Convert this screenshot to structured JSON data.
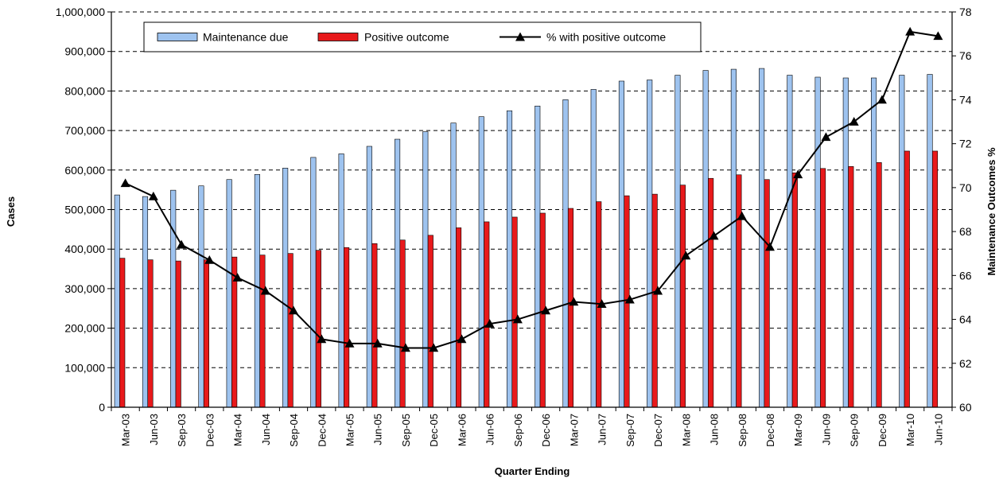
{
  "chart_data": {
    "type": "bar",
    "title": "",
    "xlabel": "Quarter Ending",
    "ylabel": "Cases",
    "y2label": "Maintenance Outcomes %",
    "ylim": [
      0,
      1000000
    ],
    "y2lim": [
      60,
      78
    ],
    "grid": true,
    "legend_position": "top",
    "y_ticks": [
      "0",
      "100,000",
      "200,000",
      "300,000",
      "400,000",
      "500,000",
      "600,000",
      "700,000",
      "800,000",
      "900,000",
      "1,000,000"
    ],
    "y2_ticks": [
      "60",
      "62",
      "64",
      "66",
      "68",
      "70",
      "72",
      "74",
      "76",
      "78"
    ],
    "categories": [
      "Mar-03",
      "Jun-03",
      "Sep-03",
      "Dec-03",
      "Mar-04",
      "Jun-04",
      "Sep-04",
      "Dec-04",
      "Mar-05",
      "Jun-05",
      "Sep-05",
      "Dec-05",
      "Mar-06",
      "Jun-06",
      "Sep-06",
      "Dec-06",
      "Mar-07",
      "Jun-07",
      "Sep-07",
      "Dec-07",
      "Mar-08",
      "Jun-08",
      "Sep-08",
      "Dec-08",
      "Mar-09",
      "Jun-09",
      "Sep-09",
      "Dec-09",
      "Mar-10",
      "Jun-10"
    ],
    "series": [
      {
        "name": "Maintenance due",
        "kind": "bar",
        "color": "#9ec3ef",
        "values": [
          537000,
          533000,
          549000,
          560000,
          576000,
          589000,
          605000,
          632000,
          641000,
          660000,
          678000,
          697000,
          719000,
          735000,
          750000,
          762000,
          778000,
          804000,
          825000,
          828000,
          840000,
          852000,
          855000,
          857000,
          840000,
          835000,
          833000,
          833000,
          840000,
          842000
        ]
      },
      {
        "name": "Positive outcome",
        "kind": "bar",
        "color": "#e8191b",
        "values": [
          377000,
          373000,
          370000,
          373000,
          380000,
          385000,
          389000,
          397000,
          404000,
          414000,
          423000,
          435000,
          454000,
          469000,
          481000,
          491000,
          503000,
          520000,
          535000,
          539000,
          562000,
          579000,
          588000,
          576000,
          593000,
          604000,
          609000,
          619000,
          648000,
          648000
        ]
      },
      {
        "name": "% with positive outcome",
        "kind": "line",
        "axis": "right",
        "color": "#000000",
        "values": [
          70.2,
          69.6,
          67.4,
          66.7,
          65.9,
          65.3,
          64.4,
          63.1,
          62.9,
          62.9,
          62.7,
          62.7,
          63.1,
          63.8,
          64.0,
          64.4,
          64.8,
          64.7,
          64.9,
          65.3,
          66.9,
          67.8,
          68.7,
          67.3,
          70.6,
          72.3,
          73.0,
          74.0,
          77.1,
          76.9
        ]
      }
    ]
  }
}
